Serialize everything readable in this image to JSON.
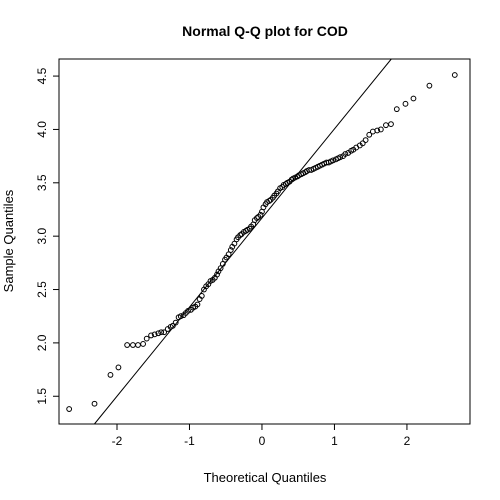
{
  "chart_data": {
    "type": "scatter",
    "title": "Normal Q-Q plot for COD",
    "xlabel": "Theoretical Quantiles",
    "ylabel": "Sample Quantiles",
    "xlim": [
      -2.8,
      2.87
    ],
    "ylim": [
      1.24,
      4.66
    ],
    "x_ticks": [
      "-2",
      "-1",
      "0",
      "1",
      "2"
    ],
    "y_ticks": [
      "1.5",
      "2.0",
      "2.5",
      "3.0",
      "3.5",
      "4.0",
      "4.5"
    ],
    "grid": false,
    "legend": "none",
    "reference_line": {
      "intercept": 3.17,
      "slope": 0.835
    },
    "marker": "open-circle",
    "colors": {
      "points": "#000000",
      "line": "#000000",
      "background": "#ffffff"
    },
    "series": [
      {
        "x": [
          -2.66,
          -2.31,
          -2.09,
          -1.98,
          -1.86,
          -1.78,
          -1.71,
          -1.64,
          -1.59,
          -1.53,
          -1.48,
          -1.43,
          -1.39,
          -1.35,
          -1.3,
          -1.26,
          -1.23,
          -1.19,
          -1.15,
          -1.12,
          -1.08,
          -1.05,
          -1.02,
          -0.98,
          -0.95,
          -0.92,
          -0.89,
          -0.86,
          -0.83,
          -0.8,
          -0.77,
          -0.74,
          -0.71,
          -0.68,
          -0.65,
          -0.62,
          -0.6,
          -0.57,
          -0.54,
          -0.51,
          -0.49,
          -0.46,
          -0.43,
          -0.41,
          -0.38,
          -0.35,
          -0.33,
          -0.3,
          -0.28,
          -0.25,
          -0.22,
          -0.2,
          -0.17,
          -0.15,
          -0.12,
          -0.1,
          -0.07,
          -0.05,
          -0.02,
          0.0,
          0.02,
          0.05,
          0.07,
          0.1,
          0.12,
          0.15,
          0.17,
          0.2,
          0.22,
          0.25,
          0.28,
          0.3,
          0.33,
          0.35,
          0.38,
          0.41,
          0.43,
          0.46,
          0.49,
          0.51,
          0.54,
          0.57,
          0.6,
          0.62,
          0.65,
          0.68,
          0.71,
          0.74,
          0.77,
          0.8,
          0.83,
          0.86,
          0.89,
          0.92,
          0.95,
          0.98,
          1.02,
          1.05,
          1.08,
          1.12,
          1.15,
          1.19,
          1.23,
          1.26,
          1.3,
          1.35,
          1.39,
          1.43,
          1.48,
          1.53,
          1.59,
          1.64,
          1.71,
          1.78,
          1.86,
          1.98,
          2.09,
          2.31,
          2.66
        ],
        "y": [
          1.38,
          1.43,
          1.7,
          1.77,
          1.98,
          1.98,
          1.98,
          1.99,
          2.04,
          2.07,
          2.08,
          2.09,
          2.1,
          2.1,
          2.13,
          2.15,
          2.16,
          2.19,
          2.24,
          2.25,
          2.26,
          2.28,
          2.3,
          2.31,
          2.33,
          2.34,
          2.36,
          2.41,
          2.44,
          2.5,
          2.53,
          2.55,
          2.58,
          2.59,
          2.61,
          2.64,
          2.67,
          2.7,
          2.74,
          2.78,
          2.8,
          2.83,
          2.87,
          2.9,
          2.93,
          2.97,
          2.99,
          3.01,
          3.02,
          3.04,
          3.05,
          3.06,
          3.07,
          3.09,
          3.11,
          3.15,
          3.17,
          3.18,
          3.2,
          3.23,
          3.27,
          3.3,
          3.32,
          3.33,
          3.34,
          3.36,
          3.38,
          3.4,
          3.42,
          3.45,
          3.46,
          3.48,
          3.49,
          3.5,
          3.51,
          3.53,
          3.54,
          3.55,
          3.56,
          3.57,
          3.58,
          3.59,
          3.6,
          3.61,
          3.62,
          3.62,
          3.63,
          3.64,
          3.65,
          3.66,
          3.67,
          3.68,
          3.69,
          3.69,
          3.7,
          3.71,
          3.72,
          3.73,
          3.74,
          3.75,
          3.77,
          3.78,
          3.8,
          3.81,
          3.83,
          3.85,
          3.87,
          3.9,
          3.95,
          3.98,
          3.99,
          4.0,
          4.04,
          4.05,
          4.19,
          4.24,
          4.29,
          4.41,
          4.51
        ]
      }
    ]
  }
}
